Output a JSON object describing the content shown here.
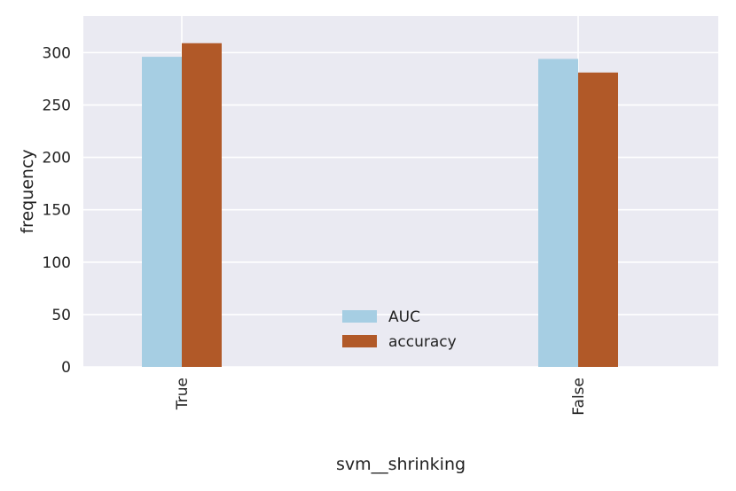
{
  "chart_data": {
    "type": "bar",
    "title": "",
    "xlabel": "svm__shrinking",
    "ylabel": "frequency",
    "categories": [
      "True",
      "False"
    ],
    "series": [
      {
        "name": "AUC",
        "values": [
          296,
          294
        ]
      },
      {
        "name": "accuracy",
        "values": [
          309,
          281
        ]
      }
    ],
    "ylim": [
      0,
      335
    ],
    "yticks": [
      0,
      50,
      100,
      150,
      200,
      250,
      300
    ],
    "grid": true,
    "legend_position": "lower-center",
    "colors": {
      "AUC": "#a6cee3",
      "accuracy": "#b15928",
      "plot_background": "#eaeaf2",
      "gridline": "#ffffff"
    }
  }
}
